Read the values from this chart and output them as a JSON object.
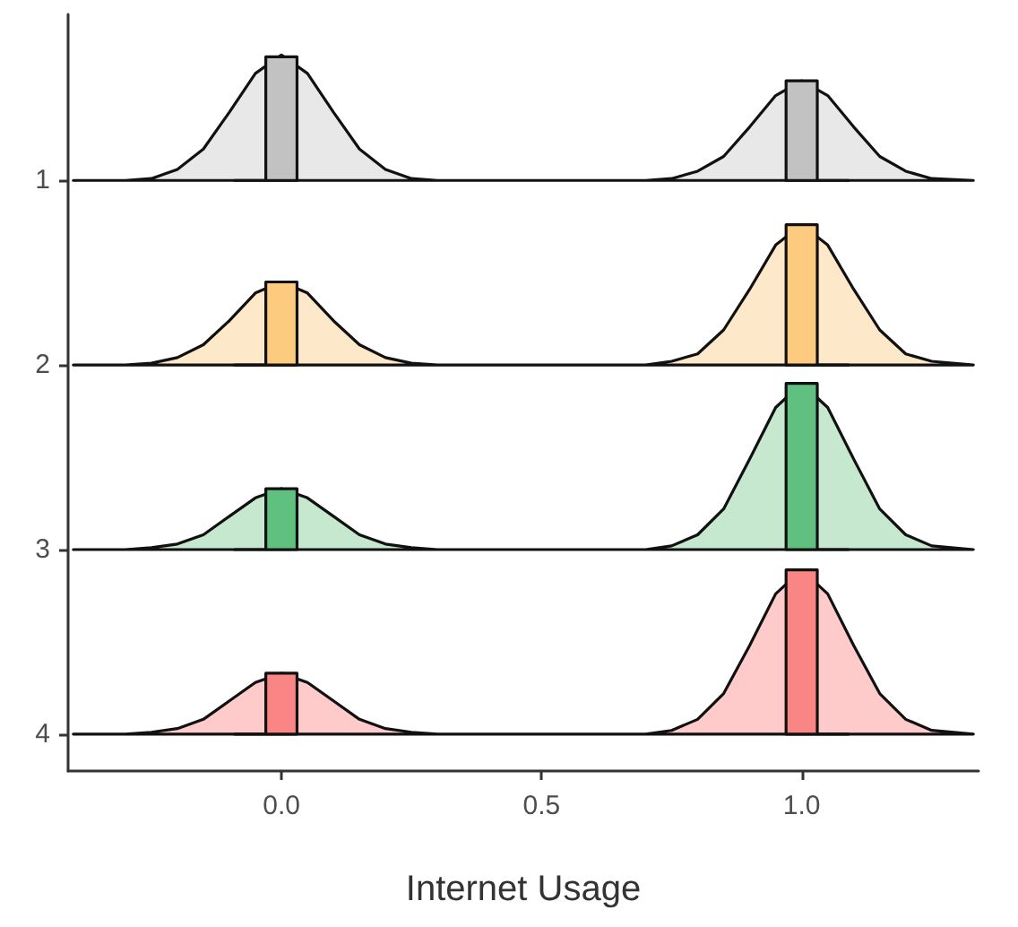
{
  "chart_data": {
    "type": "area",
    "xlabel": "Internet Usage",
    "xlim": [
      -0.41,
      1.34
    ],
    "ylim": [
      4.2,
      0.1
    ],
    "xticks": [
      {
        "value": 0,
        "label": "0.0"
      },
      {
        "value": 0.5,
        "label": "0.5"
      },
      {
        "value": 1,
        "label": "1.0"
      }
    ],
    "yticks": [
      1,
      2,
      3,
      4
    ],
    "grid": false,
    "line_style": "solid",
    "series": [
      {
        "color": "#e8e8e8",
        "x": [
          -0.4,
          -0.3,
          -0.25,
          -0.2,
          -0.15,
          -0.1,
          -0.05,
          0,
          0.05,
          0.1,
          0.15,
          0.2,
          0.25,
          0.3,
          0.5,
          0.7,
          0.75,
          0.8,
          0.85,
          0.9,
          0.95,
          1.0,
          1.05,
          1.1,
          1.15,
          1.2,
          1.25,
          1.33
        ],
        "values": [
          1,
          1,
          0.99,
          0.94,
          0.83,
          0.63,
          0.42,
          0.32,
          0.42,
          0.63,
          0.83,
          0.94,
          0.99,
          1,
          1,
          1,
          0.99,
          0.95,
          0.87,
          0.71,
          0.54,
          0.46,
          0.54,
          0.71,
          0.87,
          0.95,
          0.99,
          1
        ]
      },
      {
        "color": "#c2c2c2",
        "x": [
          -0.09,
          -0.03,
          -0.03,
          0.03,
          0.03
        ],
        "values": [
          1,
          1,
          0.33,
          0.33,
          1
        ]
      },
      {
        "color": "#c2c2c2",
        "x": [
          0.97,
          0.97,
          1.03,
          1.03,
          1.09
        ],
        "values": [
          1,
          0.46,
          0.46,
          1,
          1
        ]
      },
      {
        "color": "#fde9c9",
        "x": [
          -0.4,
          -0.3,
          -0.25,
          -0.2,
          -0.15,
          -0.1,
          -0.05,
          0,
          0.05,
          0.1,
          0.15,
          0.2,
          0.25,
          0.3,
          0.5,
          0.7,
          0.75,
          0.8,
          0.85,
          0.9,
          0.95,
          1.0,
          1.05,
          1.1,
          1.15,
          1.2,
          1.25,
          1.33
        ],
        "values": [
          2,
          2,
          1.99,
          1.96,
          1.89,
          1.76,
          1.61,
          1.55,
          1.61,
          1.76,
          1.89,
          1.96,
          1.99,
          2,
          2,
          2,
          1.98,
          1.94,
          1.81,
          1.59,
          1.35,
          1.24,
          1.35,
          1.59,
          1.81,
          1.94,
          1.98,
          2
        ]
      },
      {
        "color": "#fdcb80",
        "x": [
          -0.09,
          -0.03,
          -0.03,
          0.03,
          0.03
        ],
        "values": [
          2,
          2,
          1.55,
          1.55,
          2
        ]
      },
      {
        "color": "#fdcb80",
        "x": [
          0.97,
          0.97,
          1.03,
          1.03,
          1.09
        ],
        "values": [
          2,
          1.24,
          1.24,
          2,
          2
        ]
      },
      {
        "color": "#c6e8cf",
        "x": [
          -0.4,
          -0.3,
          -0.25,
          -0.2,
          -0.15,
          -0.1,
          -0.05,
          0,
          0.05,
          0.1,
          0.15,
          0.2,
          0.25,
          0.3,
          0.5,
          0.7,
          0.75,
          0.8,
          0.85,
          0.9,
          0.95,
          1.0,
          1.05,
          1.1,
          1.15,
          1.2,
          1.25,
          1.33
        ],
        "values": [
          3,
          3,
          2.99,
          2.97,
          2.92,
          2.82,
          2.72,
          2.67,
          2.72,
          2.82,
          2.92,
          2.97,
          2.99,
          3,
          3,
          3,
          2.98,
          2.92,
          2.78,
          2.51,
          2.23,
          2.1,
          2.23,
          2.51,
          2.78,
          2.92,
          2.98,
          3
        ]
      },
      {
        "color": "#5fc07f",
        "x": [
          -0.09,
          -0.03,
          -0.03,
          0.03,
          0.03
        ],
        "values": [
          3,
          3,
          2.67,
          2.67,
          3
        ]
      },
      {
        "color": "#5fc07f",
        "x": [
          0.97,
          0.97,
          1.03,
          1.03,
          1.09
        ],
        "values": [
          3,
          2.1,
          2.1,
          3,
          3
        ]
      },
      {
        "color": "#fecaca",
        "x": [
          -0.4,
          -0.3,
          -0.25,
          -0.2,
          -0.15,
          -0.1,
          -0.05,
          0,
          0.05,
          0.1,
          0.15,
          0.2,
          0.25,
          0.3,
          0.5,
          0.7,
          0.75,
          0.8,
          0.85,
          0.9,
          0.95,
          1.0,
          1.05,
          1.1,
          1.15,
          1.2,
          1.25,
          1.33
        ],
        "values": [
          4,
          4,
          3.99,
          3.97,
          3.92,
          3.82,
          3.72,
          3.67,
          3.72,
          3.82,
          3.92,
          3.97,
          3.99,
          4,
          4,
          4,
          3.98,
          3.92,
          3.78,
          3.52,
          3.24,
          3.11,
          3.24,
          3.52,
          3.78,
          3.92,
          3.98,
          4
        ]
      },
      {
        "color": "#f98585",
        "x": [
          -0.09,
          -0.03,
          -0.03,
          0.03,
          0.03
        ],
        "values": [
          4,
          4,
          3.67,
          3.67,
          4
        ]
      },
      {
        "color": "#f98585",
        "x": [
          0.97,
          0.97,
          1.03,
          1.03,
          1.09
        ],
        "values": [
          4,
          3.11,
          3.11,
          4,
          4
        ]
      }
    ]
  }
}
